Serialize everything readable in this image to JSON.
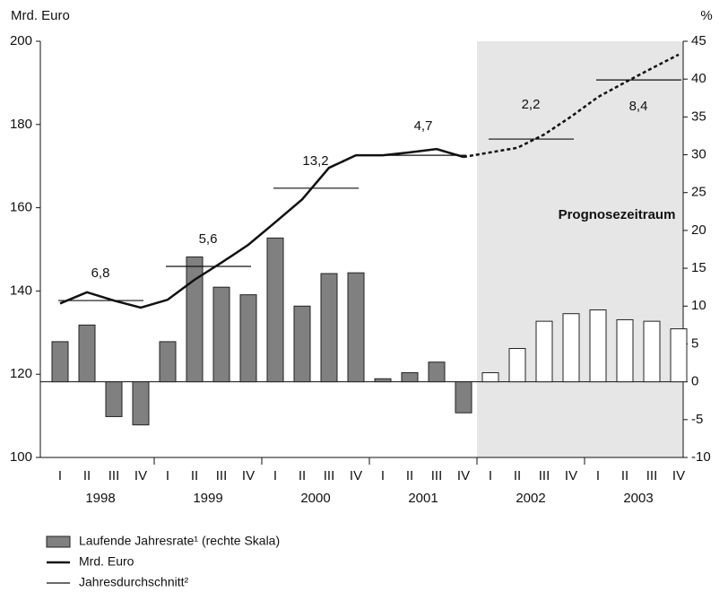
{
  "chart_data": {
    "type": "bar-line",
    "ylabel": "Mrd. Euro",
    "y2label": "%",
    "quarters": [
      "I",
      "II",
      "III",
      "IV",
      "I",
      "II",
      "III",
      "IV",
      "I",
      "II",
      "III",
      "IV",
      "I",
      "II",
      "III",
      "IV",
      "I",
      "II",
      "III",
      "IV",
      "I",
      "II",
      "III",
      "IV"
    ],
    "years": [
      "1998",
      "1999",
      "2000",
      "2001",
      "2002",
      "2003"
    ],
    "ylim": [
      100,
      200
    ],
    "yticks": [
      100,
      120,
      140,
      160,
      180,
      200
    ],
    "y2lim": [
      -10,
      45
    ],
    "y2ticks": [
      -10,
      -5,
      0,
      5,
      10,
      15,
      20,
      25,
      30,
      35,
      40,
      45
    ],
    "forecast_label": "Prognosezeitraum",
    "forecast_start": 16,
    "series": [
      {
        "name": "Laufende Jahresrate¹ (rechte Skala)",
        "type": "bar",
        "axis": "y2",
        "color": "#808080",
        "forecast_color": "#ffffff",
        "values": [
          5.3,
          7.5,
          -4.6,
          -5.7,
          5.3,
          16.5,
          12.5,
          11.5,
          19.0,
          10.0,
          14.3,
          14.4,
          0.4,
          1.2,
          2.6,
          -4.1,
          1.2,
          4.4,
          8.0,
          9.0,
          9.5,
          8.2,
          8.0,
          7.0
        ]
      },
      {
        "name": "Mrd. Euro",
        "type": "line",
        "color": "#111111",
        "dashed_from": 15,
        "values": [
          137.0,
          139.7,
          137.7,
          136.0,
          137.9,
          142.7,
          146.8,
          151.1,
          156.5,
          162.0,
          169.6,
          172.6,
          172.6,
          173.3,
          174.1,
          172.2,
          173.3,
          174.4,
          177.6,
          181.9,
          186.6,
          190.1,
          193.5,
          196.8
        ]
      },
      {
        "name": "Jahresdurchschnitt²",
        "type": "step",
        "color": "#111111",
        "values": [
          137.7,
          145.9,
          164.7,
          172.6,
          176.5,
          190.7
        ],
        "growth": [
          6.8,
          5.6,
          13.2,
          4.7,
          2.2,
          8.4
        ],
        "growth_labels": [
          "6,8",
          "5,6",
          "13,2",
          "4,7",
          "2,2",
          "8,4"
        ]
      }
    ]
  }
}
